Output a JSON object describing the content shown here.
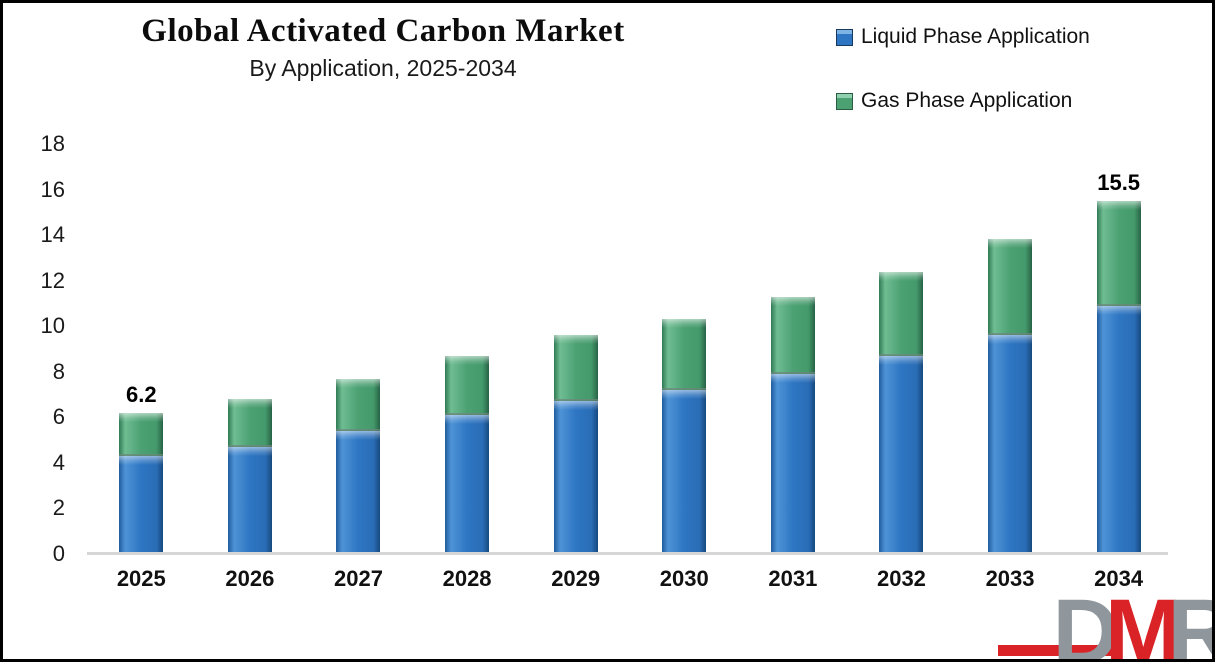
{
  "header": {
    "title": "Global Activated Carbon Market",
    "subtitle": "By Application, 2025-2034"
  },
  "legend": [
    {
      "label": "Liquid Phase Application",
      "key": "liquid",
      "color": "#2e76c3"
    },
    {
      "label": "Gas Phase Application",
      "key": "gas",
      "color": "#4ca173"
    }
  ],
  "chart_data": {
    "type": "bar",
    "stacked": true,
    "title": "Global Activated Carbon Market",
    "subtitle": "By Application, 2025-2034",
    "categories": [
      "2025",
      "2026",
      "2027",
      "2028",
      "2029",
      "2030",
      "2031",
      "2032",
      "2033",
      "2034"
    ],
    "series": [
      {
        "name": "Liquid Phase Application",
        "color": "#2e76c3",
        "values": [
          4.3,
          4.7,
          5.4,
          6.1,
          6.7,
          7.2,
          7.9,
          8.7,
          9.6,
          10.9
        ]
      },
      {
        "name": "Gas Phase Application",
        "color": "#4ca173",
        "values": [
          1.9,
          2.1,
          2.3,
          2.6,
          2.9,
          3.1,
          3.4,
          3.7,
          4.2,
          4.6
        ]
      }
    ],
    "totals": [
      6.2,
      6.8,
      7.7,
      8.7,
      9.6,
      10.3,
      11.3,
      12.4,
      13.8,
      15.5
    ],
    "data_labels": [
      "6.2",
      "",
      "",
      "",
      "",
      "",
      "",
      "",
      "",
      "15.5"
    ],
    "xlabel": "",
    "ylabel": "",
    "ylim": [
      0,
      18
    ],
    "ytick_step": 2,
    "grid": false,
    "legend_position": "top-right"
  },
  "logo": {
    "letters": [
      "D",
      "M",
      "R"
    ],
    "red": "#d92327",
    "gray": "#8f979c"
  }
}
